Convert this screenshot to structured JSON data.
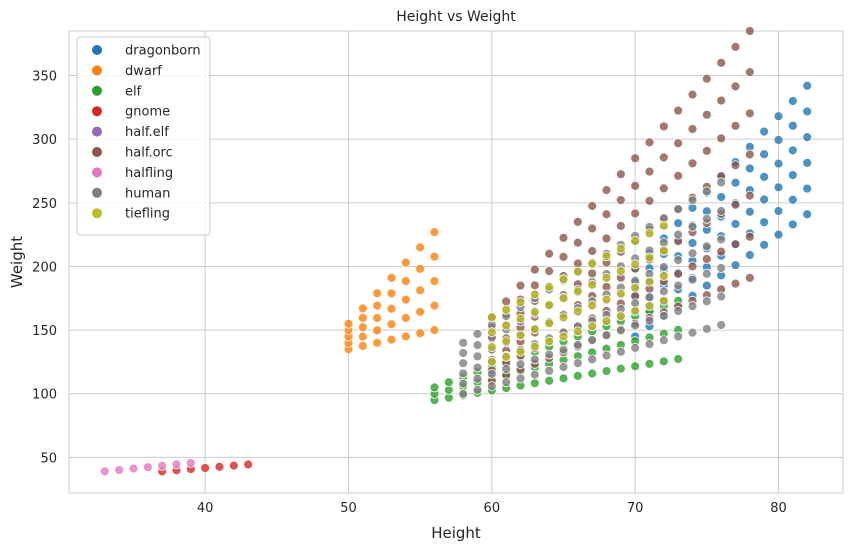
{
  "chart_data": {
    "type": "scatter",
    "title": "Height vs Weight",
    "xlabel": "Height",
    "ylabel": "Weight",
    "xlim": [
      30.5,
      84.5
    ],
    "ylim": [
      22,
      385
    ],
    "xticks": [
      40,
      50,
      60,
      70,
      80
    ],
    "yticks": [
      50,
      100,
      150,
      200,
      250,
      300,
      350
    ],
    "grid": true,
    "legend_position": "top-left",
    "series": [
      {
        "name": "dragonborn",
        "color": "#1f77b4",
        "x_range": [
          70,
          82
        ],
        "y_base": [
          145,
          198
        ],
        "slope": [
          8,
          12
        ],
        "grid_step": 6,
        "count": 6
      },
      {
        "name": "dwarf",
        "color": "#ff7f0e",
        "x_range": [
          50,
          56
        ],
        "y_base": [
          135,
          155
        ],
        "slope": [
          2.5,
          12
        ],
        "grid_step": 4,
        "count": 5
      },
      {
        "name": "elf",
        "color": "#2ca02c",
        "x_range": [
          56,
          73
        ],
        "y_base": [
          95,
          105
        ],
        "slope": [
          1.9,
          4
        ],
        "grid_step": 3,
        "count": 3
      },
      {
        "name": "gnome",
        "color": "#d62728",
        "x_range": [
          37,
          43
        ],
        "y_base": [
          39,
          40
        ],
        "slope": [
          0.9,
          1
        ],
        "grid_step": 1,
        "count": 1
      },
      {
        "name": "half.elf",
        "color": "#9467bd",
        "x_range": [
          60,
          72
        ],
        "y_base": [
          125,
          160
        ],
        "slope": [
          4,
          6
        ],
        "grid_step": 5,
        "count": 4
      },
      {
        "name": "half.orc",
        "color": "#8c564b",
        "x_range": [
          60,
          78
        ],
        "y_base": [
          110,
          160
        ],
        "slope": [
          4.5,
          12.5
        ],
        "grid_step": 8,
        "count": 7
      },
      {
        "name": "halfling",
        "color": "#e377c2",
        "x_range": [
          33,
          39
        ],
        "y_base": [
          39,
          40
        ],
        "slope": [
          1.1,
          1.2
        ],
        "grid_step": 1,
        "count": 1
      },
      {
        "name": "human",
        "color": "#7f7f7f",
        "x_range": [
          58,
          76
        ],
        "y_base": [
          100,
          140
        ],
        "slope": [
          3,
          7
        ],
        "grid_step": 8,
        "count": 6
      },
      {
        "name": "tiefling",
        "color": "#bcbd22",
        "x_range": [
          60,
          72
        ],
        "y_base": [
          125,
          160
        ],
        "slope": [
          4,
          6
        ],
        "grid_step": 5,
        "count": 4
      }
    ]
  }
}
